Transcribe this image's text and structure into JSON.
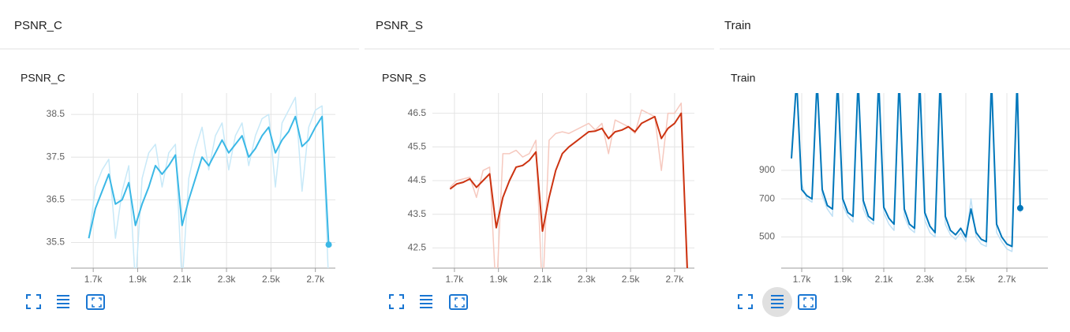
{
  "sections": [
    "PSNR_C",
    "PSNR_S",
    "Train"
  ],
  "chart_data": [
    {
      "type": "line",
      "title": "PSNR_C",
      "x": [
        1680,
        1710,
        1740,
        1770,
        1800,
        1830,
        1860,
        1890,
        1920,
        1950,
        1980,
        2010,
        2040,
        2070,
        2100,
        2130,
        2160,
        2190,
        2220,
        2250,
        2280,
        2310,
        2340,
        2370,
        2400,
        2430,
        2460,
        2490,
        2520,
        2550,
        2580,
        2610,
        2640,
        2670,
        2700,
        2730,
        2760
      ],
      "series": [
        {
          "color": "#c8e9f8",
          "values": [
            35.6,
            36.8,
            37.2,
            37.45,
            35.6,
            36.7,
            37.3,
            34.5,
            37.0,
            37.6,
            37.8,
            36.8,
            37.6,
            37.8,
            34.5,
            37.0,
            37.7,
            38.2,
            37.2,
            38.0,
            38.3,
            37.2,
            38.0,
            38.3,
            37.3,
            38.0,
            38.4,
            38.5,
            36.8,
            38.3,
            38.6,
            38.9,
            36.7,
            38.2,
            38.6,
            38.7,
            34.5
          ]
        },
        {
          "color": "#3bb8e6",
          "values": [
            35.6,
            36.3,
            36.7,
            37.1,
            36.4,
            36.5,
            36.9,
            35.9,
            36.4,
            36.8,
            37.3,
            37.1,
            37.3,
            37.55,
            35.9,
            36.5,
            37.0,
            37.5,
            37.3,
            37.6,
            37.9,
            37.6,
            37.8,
            38.0,
            37.5,
            37.7,
            38.0,
            38.2,
            37.6,
            37.9,
            38.1,
            38.45,
            37.75,
            37.9,
            38.2,
            38.45,
            35.45
          ]
        }
      ],
      "xlim": [
        1600,
        2790
      ],
      "ylim": [
        34.9,
        39.0
      ],
      "xticks": [
        {
          "value": 1700,
          "label": "1.7k"
        },
        {
          "value": 1900,
          "label": "1.9k"
        },
        {
          "value": 2100,
          "label": "2.1k"
        },
        {
          "value": 2300,
          "label": "2.3k"
        },
        {
          "value": 2500,
          "label": "2.5k"
        },
        {
          "value": 2700,
          "label": "2.7k"
        }
      ],
      "yticks": [
        35.5,
        36.5,
        37.5,
        38.5
      ],
      "grid": true,
      "log_y": false
    },
    {
      "type": "line",
      "title": "PSNR_S",
      "x": [
        1680,
        1710,
        1740,
        1770,
        1800,
        1830,
        1860,
        1890,
        1920,
        1950,
        1980,
        2010,
        2040,
        2070,
        2100,
        2130,
        2160,
        2190,
        2220,
        2250,
        2280,
        2310,
        2340,
        2370,
        2400,
        2430,
        2460,
        2490,
        2520,
        2550,
        2580,
        2610,
        2640,
        2670,
        2700,
        2730,
        2760
      ],
      "series": [
        {
          "color": "#f6c9bf",
          "values": [
            44.3,
            44.5,
            44.55,
            44.6,
            44.0,
            44.8,
            44.9,
            41.0,
            45.3,
            45.3,
            45.4,
            45.2,
            45.3,
            45.7,
            41.0,
            45.7,
            45.9,
            45.95,
            45.9,
            46.0,
            46.1,
            46.2,
            46.0,
            46.2,
            45.3,
            46.3,
            46.2,
            46.1,
            45.9,
            46.6,
            46.5,
            46.4,
            44.8,
            46.5,
            46.5,
            46.8,
            41.0
          ]
        },
        {
          "color": "#cc3311",
          "values": [
            44.25,
            44.4,
            44.45,
            44.55,
            44.3,
            44.5,
            44.7,
            43.1,
            44.0,
            44.5,
            44.9,
            44.95,
            45.1,
            45.35,
            43.0,
            44.0,
            44.8,
            45.3,
            45.5,
            45.65,
            45.8,
            45.95,
            45.97,
            46.05,
            45.75,
            45.95,
            46.0,
            46.1,
            45.95,
            46.2,
            46.3,
            46.4,
            45.75,
            46.05,
            46.2,
            46.5,
            41.5
          ]
        }
      ],
      "xlim": [
        1600,
        2790
      ],
      "ylim": [
        41.9,
        47.1
      ],
      "xticks": [
        {
          "value": 1700,
          "label": "1.7k"
        },
        {
          "value": 1900,
          "label": "1.9k"
        },
        {
          "value": 2100,
          "label": "2.1k"
        },
        {
          "value": 2300,
          "label": "2.3k"
        },
        {
          "value": 2500,
          "label": "2.5k"
        },
        {
          "value": 2700,
          "label": "2.7k"
        }
      ],
      "yticks": [
        42.5,
        43.5,
        44.5,
        45.5,
        46.5
      ],
      "grid": true,
      "log_y": false
    },
    {
      "type": "line",
      "title": "Train",
      "x": [
        1650,
        1675,
        1700,
        1725,
        1750,
        1775,
        1800,
        1825,
        1850,
        1875,
        1900,
        1925,
        1950,
        1975,
        2000,
        2025,
        2050,
        2075,
        2100,
        2125,
        2150,
        2175,
        2200,
        2225,
        2250,
        2275,
        2300,
        2325,
        2350,
        2375,
        2400,
        2425,
        2450,
        2475,
        2500,
        2525,
        2550,
        2575,
        2600,
        2625,
        2650,
        2675,
        2700,
        2725,
        2750,
        2765
      ],
      "series": [
        {
          "color": "#bfe0f5",
          "values": [
            1050,
            2000,
            800,
            700,
            680,
            2000,
            720,
            640,
            600,
            2000,
            660,
            600,
            570,
            2000,
            640,
            580,
            560,
            2000,
            620,
            560,
            530,
            2000,
            600,
            540,
            520,
            2000,
            580,
            520,
            500,
            2000,
            560,
            510,
            490,
            520,
            480,
            700,
            500,
            470,
            460,
            2000,
            520,
            480,
            450,
            440,
            2000,
            620
          ]
        },
        {
          "color": "#0077bb",
          "values": [
            1000,
            2000,
            760,
            720,
            700,
            2000,
            760,
            660,
            640,
            2000,
            700,
            620,
            600,
            2000,
            690,
            600,
            580,
            2000,
            650,
            590,
            560,
            2000,
            640,
            560,
            540,
            2000,
            620,
            550,
            520,
            2000,
            600,
            530,
            510,
            540,
            500,
            640,
            520,
            490,
            480,
            2000,
            560,
            500,
            470,
            460,
            2000,
            645
          ]
        }
      ],
      "xlim": [
        1600,
        2900
      ],
      "ylim": [
        380,
        1780
      ],
      "xticks": [
        {
          "value": 1700,
          "label": "1.7k"
        },
        {
          "value": 1900,
          "label": "1.9k"
        },
        {
          "value": 2100,
          "label": "2.1k"
        },
        {
          "value": 2300,
          "label": "2.3k"
        },
        {
          "value": 2500,
          "label": "2.5k"
        },
        {
          "value": 2700,
          "label": "2.7k"
        }
      ],
      "yticks": [
        500,
        700,
        900
      ],
      "grid": true,
      "log_y": true
    }
  ]
}
